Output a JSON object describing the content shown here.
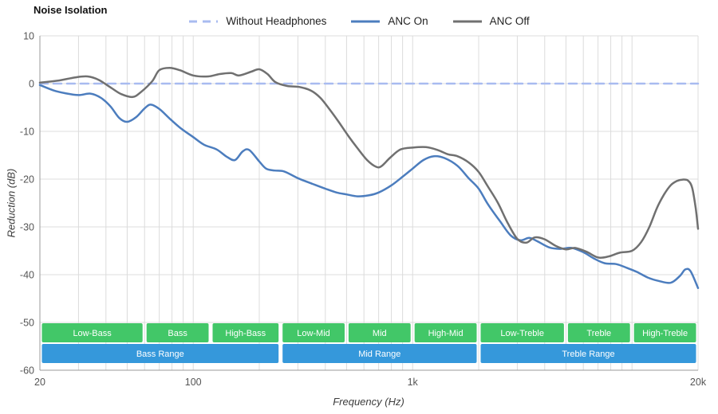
{
  "title": "Noise Isolation",
  "chart_data": {
    "type": "line",
    "title": "Noise Isolation",
    "xlabel": "Frequency (Hz)",
    "ylabel": "Reduction (dB)",
    "x_scale": "log",
    "x_min": 20,
    "x_max": 20000,
    "y_min": -60,
    "y_max": 10,
    "grid": true,
    "legend_position": "top",
    "colors": {
      "grid": "#dcdcdc",
      "axis": "#9a9a9a",
      "tick_text": "#555555",
      "band_text": "#ffffff",
      "sub_band": "#42c768",
      "range_band": "#3598db"
    },
    "x_ticks": [
      {
        "value": 20,
        "label": "20"
      },
      {
        "value": 100,
        "label": "100"
      },
      {
        "value": 1000,
        "label": "1k"
      },
      {
        "value": 20000,
        "label": "20k"
      }
    ],
    "y_ticks": [
      {
        "value": 10,
        "label": "10"
      },
      {
        "value": 0,
        "label": "0"
      },
      {
        "value": -10,
        "label": "-10"
      },
      {
        "value": -20,
        "label": "-20"
      },
      {
        "value": -30,
        "label": "-30"
      },
      {
        "value": -40,
        "label": "-40"
      },
      {
        "value": -50,
        "label": "-50"
      },
      {
        "value": -60,
        "label": "-60"
      }
    ],
    "series": [
      {
        "name": "Without Headphones",
        "slug": "without-headphones",
        "color": "#a8bbf0",
        "dash": "10 7",
        "width": 2.5,
        "points": [
          [
            20,
            0
          ],
          [
            200,
            0
          ],
          [
            2000,
            0
          ],
          [
            20000,
            0
          ]
        ]
      },
      {
        "name": "ANC On",
        "slug": "anc-on",
        "color": "#4c7dbe",
        "width": 2.5,
        "points": [
          [
            20,
            -0.3
          ],
          [
            23,
            -1.4
          ],
          [
            26,
            -2
          ],
          [
            30,
            -2.4
          ],
          [
            34,
            -2.1
          ],
          [
            38,
            -3
          ],
          [
            42,
            -4.8
          ],
          [
            46,
            -7.2
          ],
          [
            50,
            -8
          ],
          [
            55,
            -7
          ],
          [
            60,
            -5.2
          ],
          [
            64,
            -4.4
          ],
          [
            70,
            -5.3
          ],
          [
            78,
            -7.3
          ],
          [
            88,
            -9.4
          ],
          [
            100,
            -11.2
          ],
          [
            112,
            -12.8
          ],
          [
            128,
            -13.8
          ],
          [
            142,
            -15.3
          ],
          [
            155,
            -16
          ],
          [
            168,
            -14.2
          ],
          [
            180,
            -13.9
          ],
          [
            200,
            -16.3
          ],
          [
            215,
            -17.8
          ],
          [
            235,
            -18.2
          ],
          [
            260,
            -18.4
          ],
          [
            300,
            -19.8
          ],
          [
            350,
            -21
          ],
          [
            400,
            -22
          ],
          [
            450,
            -22.8
          ],
          [
            500,
            -23.2
          ],
          [
            560,
            -23.6
          ],
          [
            630,
            -23.4
          ],
          [
            700,
            -22.8
          ],
          [
            800,
            -21.3
          ],
          [
            900,
            -19.5
          ],
          [
            1000,
            -17.8
          ],
          [
            1120,
            -16
          ],
          [
            1250,
            -15.2
          ],
          [
            1400,
            -15.6
          ],
          [
            1600,
            -17.2
          ],
          [
            1800,
            -19.8
          ],
          [
            2000,
            -22
          ],
          [
            2200,
            -25.2
          ],
          [
            2500,
            -28.8
          ],
          [
            2800,
            -31.8
          ],
          [
            3100,
            -32.8
          ],
          [
            3400,
            -32.3
          ],
          [
            3700,
            -33
          ],
          [
            4200,
            -34.3
          ],
          [
            4700,
            -34.6
          ],
          [
            5300,
            -34.4
          ],
          [
            6000,
            -35.3
          ],
          [
            6700,
            -36.6
          ],
          [
            7500,
            -37.6
          ],
          [
            8500,
            -37.8
          ],
          [
            9500,
            -38.6
          ],
          [
            10500,
            -39.4
          ],
          [
            11800,
            -40.6
          ],
          [
            13200,
            -41.3
          ],
          [
            15000,
            -41.7
          ],
          [
            16500,
            -40.3
          ],
          [
            17500,
            -38.9
          ],
          [
            18500,
            -39.3
          ],
          [
            20000,
            -42.8
          ]
        ]
      },
      {
        "name": "ANC Off",
        "slug": "anc-off",
        "color": "#707070",
        "width": 2.5,
        "points": [
          [
            20,
            0.2
          ],
          [
            24,
            0.6
          ],
          [
            29,
            1.3
          ],
          [
            33,
            1.5
          ],
          [
            37,
            0.8
          ],
          [
            42,
            -0.8
          ],
          [
            47,
            -2.2
          ],
          [
            53,
            -2.8
          ],
          [
            58,
            -1.7
          ],
          [
            65,
            0.5
          ],
          [
            70,
            2.8
          ],
          [
            78,
            3.3
          ],
          [
            87,
            2.8
          ],
          [
            100,
            1.7
          ],
          [
            117,
            1.5
          ],
          [
            132,
            2
          ],
          [
            149,
            2.2
          ],
          [
            162,
            1.7
          ],
          [
            184,
            2.5
          ],
          [
            200,
            3
          ],
          [
            218,
            2
          ],
          [
            237,
            0.3
          ],
          [
            268,
            -0.5
          ],
          [
            304,
            -0.7
          ],
          [
            345,
            -1.5
          ],
          [
            380,
            -3
          ],
          [
            420,
            -5.5
          ],
          [
            460,
            -8
          ],
          [
            510,
            -11
          ],
          [
            560,
            -13.5
          ],
          [
            620,
            -16
          ],
          [
            680,
            -17.4
          ],
          [
            720,
            -17.3
          ],
          [
            790,
            -15.5
          ],
          [
            880,
            -13.8
          ],
          [
            1000,
            -13.4
          ],
          [
            1150,
            -13.3
          ],
          [
            1300,
            -13.9
          ],
          [
            1450,
            -14.8
          ],
          [
            1600,
            -15.2
          ],
          [
            1800,
            -16.5
          ],
          [
            2000,
            -18.5
          ],
          [
            2200,
            -21.5
          ],
          [
            2450,
            -25
          ],
          [
            2700,
            -29
          ],
          [
            3000,
            -32.5
          ],
          [
            3300,
            -33.3
          ],
          [
            3600,
            -32.2
          ],
          [
            4000,
            -32.6
          ],
          [
            4500,
            -34
          ],
          [
            5000,
            -34.7
          ],
          [
            5500,
            -34.4
          ],
          [
            6200,
            -35.2
          ],
          [
            7000,
            -36.4
          ],
          [
            7800,
            -36.2
          ],
          [
            8800,
            -35.4
          ],
          [
            10000,
            -35
          ],
          [
            11000,
            -33.2
          ],
          [
            12000,
            -30
          ],
          [
            13000,
            -26
          ],
          [
            14000,
            -23.2
          ],
          [
            15000,
            -21.3
          ],
          [
            16000,
            -20.4
          ],
          [
            17000,
            -20.1
          ],
          [
            18000,
            -20.3
          ],
          [
            18800,
            -21.8
          ],
          [
            19500,
            -26
          ],
          [
            20000,
            -30.4
          ]
        ]
      }
    ],
    "sub_bands": [
      {
        "label": "Low-Bass",
        "from": 20,
        "to": 60
      },
      {
        "label": "Bass",
        "from": 60,
        "to": 120
      },
      {
        "label": "High-Bass",
        "from": 120,
        "to": 250
      },
      {
        "label": "Low-Mid",
        "from": 250,
        "to": 500
      },
      {
        "label": "Mid",
        "from": 500,
        "to": 1000
      },
      {
        "label": "High-Mid",
        "from": 1000,
        "to": 2000
      },
      {
        "label": "Low-Treble",
        "from": 2000,
        "to": 5000
      },
      {
        "label": "Treble",
        "from": 5000,
        "to": 10000
      },
      {
        "label": "High-Treble",
        "from": 10000,
        "to": 20000
      }
    ],
    "range_bands": [
      {
        "label": "Bass Range",
        "from": 20,
        "to": 250
      },
      {
        "label": "Mid Range",
        "from": 250,
        "to": 2000
      },
      {
        "label": "Treble Range",
        "from": 2000,
        "to": 20000
      }
    ]
  }
}
